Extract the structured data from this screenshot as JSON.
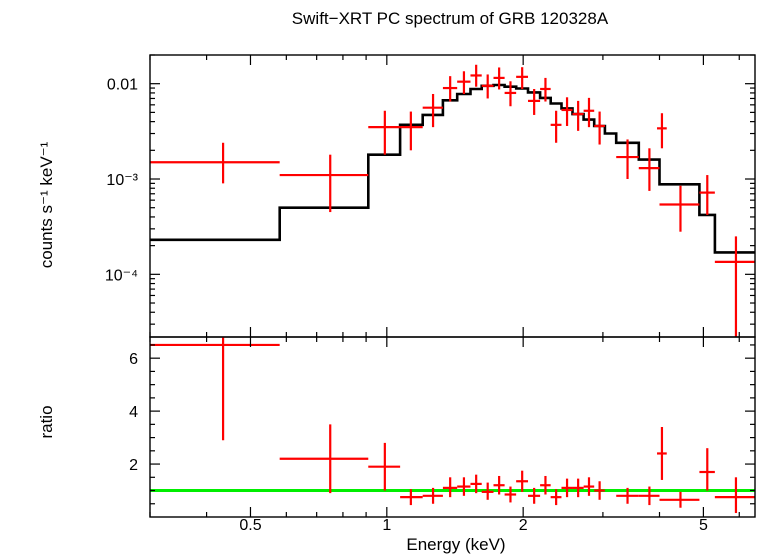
{
  "chart_data": {
    "type": "scatter",
    "title": "Swift−XRT PC spectrum of GRB 120328A",
    "xlabel": "Energy (keV)",
    "x_scale": "log",
    "xlim": [
      0.3,
      6.5
    ],
    "x_ticks": [
      {
        "value": 0.5,
        "label": "0.5"
      },
      {
        "value": 1,
        "label": "1"
      },
      {
        "value": 2,
        "label": "2"
      },
      {
        "value": 5,
        "label": "5"
      }
    ],
    "colors": {
      "data": "#ff0000",
      "model": "#000000",
      "ratio_line": "#00ee00"
    },
    "panels": [
      {
        "name": "spectrum",
        "ylabel": "counts s⁻¹ keV⁻¹",
        "y_scale": "log",
        "ylim": [
          2.2e-05,
          0.02
        ],
        "y_ticks": [
          {
            "value": 0.01,
            "label": "0.01"
          },
          {
            "value": 0.001,
            "label": "10⁻³"
          },
          {
            "value": 0.0001,
            "label": "10⁻⁴"
          }
        ],
        "model": {
          "edges": [
            0.3,
            0.58,
            0.91,
            1.07,
            1.2,
            1.33,
            1.43,
            1.53,
            1.62,
            1.72,
            1.82,
            1.93,
            2.05,
            2.18,
            2.3,
            2.43,
            2.57,
            2.72,
            2.87,
            3.03,
            3.21,
            3.6,
            4.0,
            4.9,
            5.3,
            6.5
          ],
          "values": [
            0.00023,
            0.0005,
            0.0018,
            0.0037,
            0.0047,
            0.0067,
            0.0078,
            0.0088,
            0.0095,
            0.0097,
            0.0093,
            0.0089,
            0.0081,
            0.0071,
            0.0062,
            0.0055,
            0.0048,
            0.0042,
            0.0036,
            0.003,
            0.0024,
            0.0016,
            0.00088,
            0.00042,
            0.00017
          ]
        },
        "points": [
          {
            "x": 0.435,
            "x_lo": 0.3,
            "x_hi": 0.58,
            "y": 0.0015,
            "y_lo": 0.0009,
            "y_hi": 0.0024
          },
          {
            "x": 0.75,
            "x_lo": 0.58,
            "x_hi": 0.91,
            "y": 0.0011,
            "y_lo": 0.00045,
            "y_hi": 0.0018
          },
          {
            "x": 0.99,
            "x_lo": 0.91,
            "x_hi": 1.07,
            "y": 0.0035,
            "y_lo": 0.0018,
            "y_hi": 0.0052
          },
          {
            "x": 1.13,
            "x_lo": 1.07,
            "x_hi": 1.2,
            "y": 0.0035,
            "y_lo": 0.002,
            "y_hi": 0.0051
          },
          {
            "x": 1.265,
            "x_lo": 1.2,
            "x_hi": 1.33,
            "y": 0.0056,
            "y_lo": 0.0035,
            "y_hi": 0.0078
          },
          {
            "x": 1.38,
            "x_lo": 1.33,
            "x_hi": 1.43,
            "y": 0.009,
            "y_lo": 0.0065,
            "y_hi": 0.012
          },
          {
            "x": 1.48,
            "x_lo": 1.43,
            "x_hi": 1.53,
            "y": 0.0105,
            "y_lo": 0.0078,
            "y_hi": 0.0135
          },
          {
            "x": 1.575,
            "x_lo": 1.53,
            "x_hi": 1.62,
            "y": 0.0122,
            "y_lo": 0.0093,
            "y_hi": 0.0158
          },
          {
            "x": 1.67,
            "x_lo": 1.62,
            "x_hi": 1.72,
            "y": 0.0095,
            "y_lo": 0.007,
            "y_hi": 0.0125
          },
          {
            "x": 1.77,
            "x_lo": 1.72,
            "x_hi": 1.82,
            "y": 0.0115,
            "y_lo": 0.0087,
            "y_hi": 0.0148
          },
          {
            "x": 1.875,
            "x_lo": 1.82,
            "x_hi": 1.93,
            "y": 0.008,
            "y_lo": 0.0058,
            "y_hi": 0.0106
          },
          {
            "x": 1.99,
            "x_lo": 1.93,
            "x_hi": 2.05,
            "y": 0.0118,
            "y_lo": 0.0088,
            "y_hi": 0.0149
          },
          {
            "x": 2.115,
            "x_lo": 2.05,
            "x_hi": 2.18,
            "y": 0.0066,
            "y_lo": 0.0047,
            "y_hi": 0.0088
          },
          {
            "x": 2.24,
            "x_lo": 2.18,
            "x_hi": 2.3,
            "y": 0.0088,
            "y_lo": 0.0065,
            "y_hi": 0.0115
          },
          {
            "x": 2.365,
            "x_lo": 2.3,
            "x_hi": 2.43,
            "y": 0.0037,
            "y_lo": 0.0024,
            "y_hi": 0.0052
          },
          {
            "x": 2.5,
            "x_lo": 2.43,
            "x_hi": 2.57,
            "y": 0.0053,
            "y_lo": 0.0036,
            "y_hi": 0.0072
          },
          {
            "x": 2.645,
            "x_lo": 2.57,
            "x_hi": 2.72,
            "y": 0.0048,
            "y_lo": 0.0032,
            "y_hi": 0.0066
          },
          {
            "x": 2.795,
            "x_lo": 2.72,
            "x_hi": 2.87,
            "y": 0.0052,
            "y_lo": 0.0035,
            "y_hi": 0.0071
          },
          {
            "x": 2.95,
            "x_lo": 2.87,
            "x_hi": 3.03,
            "y": 0.0036,
            "y_lo": 0.0023,
            "y_hi": 0.0051
          },
          {
            "x": 3.4,
            "x_lo": 3.21,
            "x_hi": 3.6,
            "y": 0.0017,
            "y_lo": 0.001,
            "y_hi": 0.0026
          },
          {
            "x": 3.8,
            "x_lo": 3.6,
            "x_hi": 4.0,
            "y": 0.0013,
            "y_lo": 0.00075,
            "y_hi": 0.0021
          },
          {
            "x": 4.05,
            "x_lo": 3.95,
            "x_hi": 4.15,
            "y": 0.0034,
            "y_lo": 0.0021,
            "y_hi": 0.0049
          },
          {
            "x": 4.45,
            "x_lo": 4.0,
            "x_hi": 4.9,
            "y": 0.00054,
            "y_lo": 0.00028,
            "y_hi": 0.00085
          },
          {
            "x": 5.1,
            "x_lo": 4.9,
            "x_hi": 5.3,
            "y": 0.00072,
            "y_lo": 0.00042,
            "y_hi": 0.0011
          },
          {
            "x": 5.9,
            "x_lo": 5.3,
            "x_hi": 6.5,
            "y": 0.000135,
            "y_lo": 2.2e-05,
            "y_hi": 0.00025
          }
        ]
      },
      {
        "name": "ratio",
        "ylabel": "ratio",
        "y_scale": "linear",
        "ylim": [
          0,
          6.8
        ],
        "y_ticks": [
          {
            "value": 2,
            "label": "2"
          },
          {
            "value": 4,
            "label": "4"
          },
          {
            "value": 6,
            "label": "6"
          }
        ],
        "reference_line": 1,
        "points": [
          {
            "x": 0.435,
            "x_lo": 0.3,
            "x_hi": 0.58,
            "y": 6.5,
            "y_lo": 2.9,
            "y_hi": 6.8
          },
          {
            "x": 0.75,
            "x_lo": 0.58,
            "x_hi": 0.91,
            "y": 2.2,
            "y_lo": 0.9,
            "y_hi": 3.5
          },
          {
            "x": 0.99,
            "x_lo": 0.91,
            "x_hi": 1.07,
            "y": 1.9,
            "y_lo": 1.0,
            "y_hi": 2.8
          },
          {
            "x": 1.13,
            "x_lo": 1.07,
            "x_hi": 1.2,
            "y": 0.75,
            "y_lo": 0.45,
            "y_hi": 1.05
          },
          {
            "x": 1.265,
            "x_lo": 1.2,
            "x_hi": 1.33,
            "y": 0.8,
            "y_lo": 0.5,
            "y_hi": 1.1
          },
          {
            "x": 1.38,
            "x_lo": 1.33,
            "x_hi": 1.43,
            "y": 1.1,
            "y_lo": 0.75,
            "y_hi": 1.5
          },
          {
            "x": 1.48,
            "x_lo": 1.43,
            "x_hi": 1.53,
            "y": 1.15,
            "y_lo": 0.8,
            "y_hi": 1.5
          },
          {
            "x": 1.575,
            "x_lo": 1.53,
            "x_hi": 1.62,
            "y": 1.25,
            "y_lo": 0.9,
            "y_hi": 1.6
          },
          {
            "x": 1.67,
            "x_lo": 1.62,
            "x_hi": 1.72,
            "y": 0.95,
            "y_lo": 0.65,
            "y_hi": 1.3
          },
          {
            "x": 1.77,
            "x_lo": 1.72,
            "x_hi": 1.82,
            "y": 1.2,
            "y_lo": 0.85,
            "y_hi": 1.55
          },
          {
            "x": 1.875,
            "x_lo": 1.82,
            "x_hi": 1.93,
            "y": 0.85,
            "y_lo": 0.55,
            "y_hi": 1.15
          },
          {
            "x": 1.99,
            "x_lo": 1.93,
            "x_hi": 2.05,
            "y": 1.35,
            "y_lo": 0.95,
            "y_hi": 1.75
          },
          {
            "x": 2.115,
            "x_lo": 2.05,
            "x_hi": 2.18,
            "y": 0.8,
            "y_lo": 0.5,
            "y_hi": 1.1
          },
          {
            "x": 2.24,
            "x_lo": 2.18,
            "x_hi": 2.3,
            "y": 1.2,
            "y_lo": 0.85,
            "y_hi": 1.55
          },
          {
            "x": 2.365,
            "x_lo": 2.3,
            "x_hi": 2.43,
            "y": 0.75,
            "y_lo": 0.45,
            "y_hi": 1.05
          },
          {
            "x": 2.5,
            "x_lo": 2.43,
            "x_hi": 2.57,
            "y": 1.1,
            "y_lo": 0.75,
            "y_hi": 1.45
          },
          {
            "x": 2.645,
            "x_lo": 2.57,
            "x_hi": 2.72,
            "y": 1.1,
            "y_lo": 0.75,
            "y_hi": 1.45
          },
          {
            "x": 2.795,
            "x_lo": 2.72,
            "x_hi": 2.87,
            "y": 1.15,
            "y_lo": 0.8,
            "y_hi": 1.5
          },
          {
            "x": 2.95,
            "x_lo": 2.87,
            "x_hi": 3.03,
            "y": 1.0,
            "y_lo": 0.65,
            "y_hi": 1.35
          },
          {
            "x": 3.4,
            "x_lo": 3.21,
            "x_hi": 3.6,
            "y": 0.8,
            "y_lo": 0.5,
            "y_hi": 1.1
          },
          {
            "x": 3.8,
            "x_lo": 3.6,
            "x_hi": 4.0,
            "y": 0.8,
            "y_lo": 0.45,
            "y_hi": 1.15
          },
          {
            "x": 4.05,
            "x_lo": 3.95,
            "x_hi": 4.15,
            "y": 2.4,
            "y_lo": 1.4,
            "y_hi": 3.4
          },
          {
            "x": 4.45,
            "x_lo": 4.0,
            "x_hi": 4.9,
            "y": 0.65,
            "y_lo": 0.35,
            "y_hi": 0.95
          },
          {
            "x": 5.1,
            "x_lo": 4.9,
            "x_hi": 5.3,
            "y": 1.7,
            "y_lo": 1.0,
            "y_hi": 2.6
          },
          {
            "x": 5.9,
            "x_lo": 5.3,
            "x_hi": 6.5,
            "y": 0.75,
            "y_lo": 0.15,
            "y_hi": 1.5
          }
        ]
      }
    ]
  }
}
